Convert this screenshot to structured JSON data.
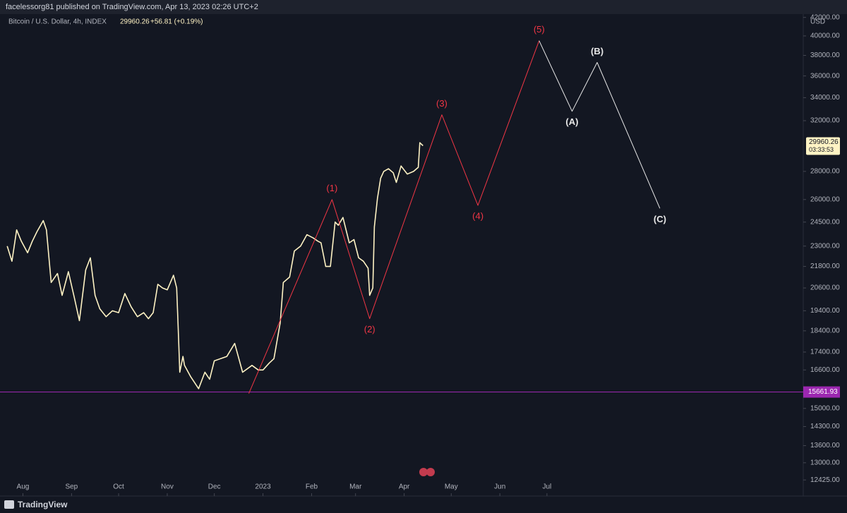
{
  "header": {
    "publisher": "facelessorg81 published on TradingView.com, Apr 13, 2023 02:26 UTC+2"
  },
  "footer": {
    "brand": "TradingView"
  },
  "chart_data": {
    "type": "line",
    "symbol": "Bitcoin / U.S. Dollar, 4h, INDEX",
    "change": "+56.81 (+0.19%)",
    "axis_unit": "USD",
    "yscale": "log",
    "grid": false,
    "ylim": [
      12200,
      43000
    ],
    "yticks": [
      {
        "value": 42000,
        "label": "42000.00"
      },
      {
        "value": 40000,
        "label": "40000.00"
      },
      {
        "value": 38000,
        "label": "38000.00"
      },
      {
        "value": 36000,
        "label": "36000.00"
      },
      {
        "value": 34000,
        "label": "34000.00"
      },
      {
        "value": 32000,
        "label": "32000.00"
      },
      {
        "value": 28000,
        "label": "28000.00"
      },
      {
        "value": 26000,
        "label": "26000.00"
      },
      {
        "value": 24500,
        "label": "24500.00"
      },
      {
        "value": 23000,
        "label": "23000.00"
      },
      {
        "value": 21800,
        "label": "21800.00"
      },
      {
        "value": 20600,
        "label": "20600.00"
      },
      {
        "value": 19400,
        "label": "19400.00"
      },
      {
        "value": 18400,
        "label": "18400.00"
      },
      {
        "value": 17400,
        "label": "17400.00"
      },
      {
        "value": 16600,
        "label": "16600.00"
      },
      {
        "value": 15000,
        "label": "15000.00"
      },
      {
        "value": 14300,
        "label": "14300.00"
      },
      {
        "value": 13600,
        "label": "13600.00"
      },
      {
        "value": 13000,
        "label": "13000.00"
      },
      {
        "value": 12425,
        "label": "12425.00"
      }
    ],
    "xlim": [
      -164,
      343
    ],
    "xticks": [
      {
        "value": -153,
        "label": "Aug"
      },
      {
        "value": -122,
        "label": "Sep"
      },
      {
        "value": -92,
        "label": "Oct"
      },
      {
        "value": -61,
        "label": "Nov"
      },
      {
        "value": -31,
        "label": "Dec"
      },
      {
        "value": 0,
        "label": "2023"
      },
      {
        "value": 31,
        "label": "Feb"
      },
      {
        "value": 59,
        "label": "Mar"
      },
      {
        "value": 90,
        "label": "Apr"
      },
      {
        "value": 120,
        "label": "May"
      },
      {
        "value": 151,
        "label": "Jun"
      },
      {
        "value": 181,
        "label": "Jul"
      }
    ],
    "series": [
      {
        "color": "#fff3c4",
        "x": [
          -163,
          -160,
          -157,
          -154,
          -150,
          -147,
          -144,
          -140,
          -138,
          -135,
          -131,
          -128,
          -124,
          -120,
          -117,
          -113,
          -110,
          -107,
          -104,
          -100,
          -96,
          -92,
          -88,
          -84,
          -80,
          -76,
          -73,
          -70,
          -67,
          -64,
          -61,
          -57,
          -55,
          -54,
          -53,
          -51,
          -50,
          -46,
          -41,
          -37,
          -34,
          -31,
          -27,
          -23,
          -18,
          -13,
          -7,
          -3,
          0,
          4,
          7,
          11,
          13,
          17,
          20,
          24,
          28,
          32,
          35,
          37,
          40,
          43,
          46,
          48,
          51,
          55,
          58,
          61,
          64,
          67,
          68,
          70,
          71,
          73,
          75,
          77,
          80,
          83,
          85,
          88,
          92,
          96,
          99,
          100,
          102
        ],
        "values": [
          23000,
          22100,
          24000,
          23300,
          22600,
          23300,
          23900,
          24600,
          24000,
          20900,
          21400,
          20200,
          21500,
          20000,
          18900,
          21600,
          22300,
          20200,
          19500,
          19100,
          19400,
          19300,
          20300,
          19600,
          19100,
          19300,
          19000,
          19300,
          20800,
          20600,
          20500,
          21300,
          20600,
          18500,
          16500,
          17200,
          16800,
          16300,
          15800,
          16500,
          16200,
          17000,
          17100,
          17200,
          17800,
          16500,
          16800,
          16600,
          16600,
          16900,
          17100,
          18800,
          20900,
          21200,
          22700,
          23000,
          23700,
          23500,
          23300,
          23200,
          21800,
          21800,
          24500,
          24300,
          24800,
          23200,
          23400,
          22300,
          22100,
          21700,
          20200,
          20600,
          24200,
          26100,
          27500,
          28000,
          28200,
          27900,
          27200,
          28400,
          27800,
          28000,
          28300,
          30200,
          29960.26
        ]
      }
    ],
    "waves": [
      {
        "color": "#f23645",
        "labels": [
          null,
          "(1)",
          "(2)",
          "(3)",
          "(4)",
          "(5)"
        ],
        "x": [
          -9,
          44,
          68,
          114,
          137,
          176
        ],
        "values": [
          15600,
          26000,
          19000,
          32500,
          25600,
          39500
        ]
      },
      {
        "color": "#e8e8e8",
        "labels": [
          null,
          "(A)",
          "(B)",
          "(C)"
        ],
        "x": [
          176,
          197,
          213,
          253
        ],
        "values": [
          39500,
          32800,
          37300,
          25400
        ]
      }
    ],
    "hline": {
      "value": 15661.93,
      "color": "#9c27b0"
    },
    "last_price": 29960.26,
    "countdown": "03:33:53"
  }
}
